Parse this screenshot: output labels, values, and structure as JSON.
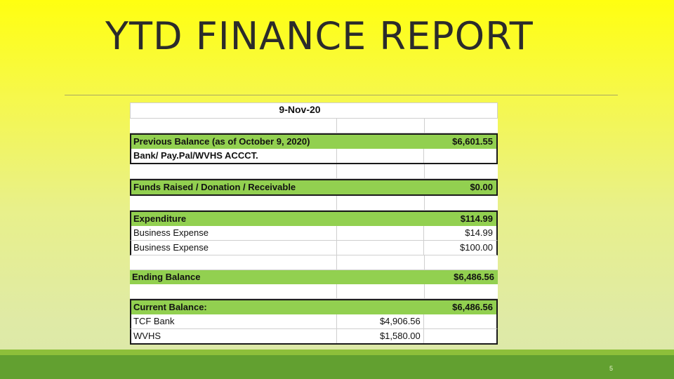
{
  "title": "YTD FINANCE REPORT",
  "page_number": "5",
  "report": {
    "date": "9-Nov-20",
    "previous_balance": {
      "label": "Previous Balance (as of October 9, 2020)",
      "value": "$6,601.55"
    },
    "accounts_label": "Bank/ Pay.Pal/WVHS ACCCT.",
    "funds_raised": {
      "label": "Funds Raised / Donation / Receivable",
      "value": "$0.00"
    },
    "expenditure": {
      "label": "Expenditure",
      "value": "$114.99"
    },
    "expenses": [
      {
        "label": "Business Expense",
        "value": "$14.99"
      },
      {
        "label": "Business Expense",
        "value": "$100.00"
      }
    ],
    "ending_balance": {
      "label": "Ending Balance",
      "value": "$6,486.56"
    },
    "current_balance": {
      "label": "Current Balance:",
      "value": "$6,486.56"
    },
    "holdings": [
      {
        "label": "TCF Bank",
        "value": "$4,906.56"
      },
      {
        "label": "WVHS",
        "value": "$1,580.00"
      }
    ]
  },
  "colors": {
    "highlight": "#92d050",
    "footer": "#62a030"
  }
}
